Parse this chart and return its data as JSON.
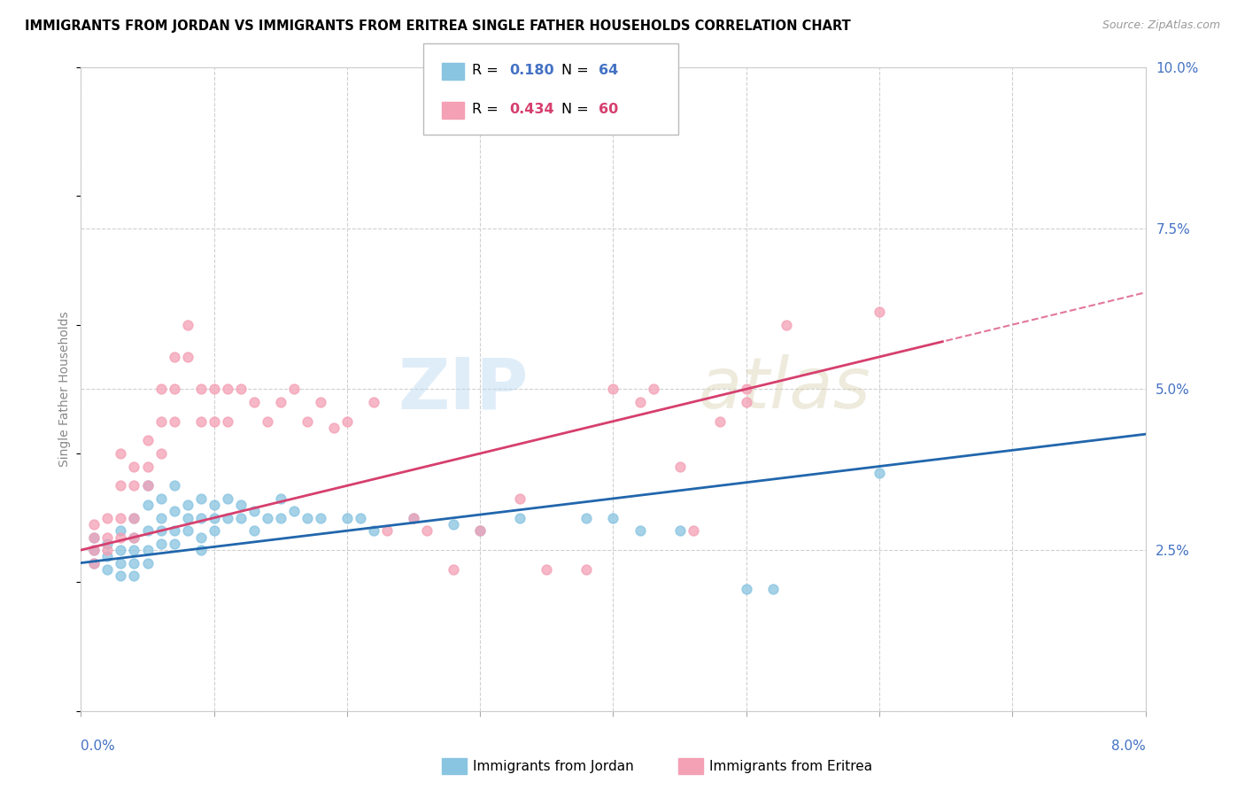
{
  "title": "IMMIGRANTS FROM JORDAN VS IMMIGRANTS FROM ERITREA SINGLE FATHER HOUSEHOLDS CORRELATION CHART",
  "source": "Source: ZipAtlas.com",
  "ylabel": "Single Father Households",
  "xlim": [
    0.0,
    0.08
  ],
  "ylim": [
    0.0,
    0.1
  ],
  "yticks": [
    0.0,
    0.025,
    0.05,
    0.075,
    0.1
  ],
  "ytick_labels": [
    "",
    "2.5%",
    "5.0%",
    "7.5%",
    "10.0%"
  ],
  "jordan_color": "#89c4e1",
  "eritrea_color": "#f4a0b5",
  "jordan_line_color": "#2166ac",
  "eritrea_line_color": "#d63f6e",
  "jordan_R": 0.18,
  "jordan_N": 64,
  "eritrea_R": 0.434,
  "eritrea_N": 60,
  "watermark_zip": "ZIP",
  "watermark_atlas": "atlas",
  "background_color": "#ffffff",
  "grid_color": "#d0d0d0",
  "axis_label_color": "#4472c4",
  "jordan_scatter": [
    [
      0.001,
      0.027
    ],
    [
      0.001,
      0.025
    ],
    [
      0.001,
      0.023
    ],
    [
      0.002,
      0.026
    ],
    [
      0.002,
      0.024
    ],
    [
      0.002,
      0.022
    ],
    [
      0.003,
      0.028
    ],
    [
      0.003,
      0.025
    ],
    [
      0.003,
      0.023
    ],
    [
      0.003,
      0.021
    ],
    [
      0.004,
      0.03
    ],
    [
      0.004,
      0.027
    ],
    [
      0.004,
      0.025
    ],
    [
      0.004,
      0.023
    ],
    [
      0.004,
      0.021
    ],
    [
      0.005,
      0.035
    ],
    [
      0.005,
      0.032
    ],
    [
      0.005,
      0.028
    ],
    [
      0.005,
      0.025
    ],
    [
      0.005,
      0.023
    ],
    [
      0.006,
      0.033
    ],
    [
      0.006,
      0.03
    ],
    [
      0.006,
      0.028
    ],
    [
      0.006,
      0.026
    ],
    [
      0.007,
      0.035
    ],
    [
      0.007,
      0.031
    ],
    [
      0.007,
      0.028
    ],
    [
      0.007,
      0.026
    ],
    [
      0.008,
      0.032
    ],
    [
      0.008,
      0.03
    ],
    [
      0.008,
      0.028
    ],
    [
      0.009,
      0.033
    ],
    [
      0.009,
      0.03
    ],
    [
      0.009,
      0.027
    ],
    [
      0.009,
      0.025
    ],
    [
      0.01,
      0.032
    ],
    [
      0.01,
      0.03
    ],
    [
      0.01,
      0.028
    ],
    [
      0.011,
      0.033
    ],
    [
      0.011,
      0.03
    ],
    [
      0.012,
      0.032
    ],
    [
      0.012,
      0.03
    ],
    [
      0.013,
      0.031
    ],
    [
      0.013,
      0.028
    ],
    [
      0.014,
      0.03
    ],
    [
      0.015,
      0.033
    ],
    [
      0.015,
      0.03
    ],
    [
      0.016,
      0.031
    ],
    [
      0.017,
      0.03
    ],
    [
      0.018,
      0.03
    ],
    [
      0.02,
      0.03
    ],
    [
      0.021,
      0.03
    ],
    [
      0.022,
      0.028
    ],
    [
      0.025,
      0.03
    ],
    [
      0.028,
      0.029
    ],
    [
      0.03,
      0.028
    ],
    [
      0.033,
      0.03
    ],
    [
      0.038,
      0.03
    ],
    [
      0.04,
      0.03
    ],
    [
      0.042,
      0.028
    ],
    [
      0.045,
      0.028
    ],
    [
      0.05,
      0.019
    ],
    [
      0.052,
      0.019
    ],
    [
      0.06,
      0.037
    ]
  ],
  "eritrea_scatter": [
    [
      0.001,
      0.029
    ],
    [
      0.001,
      0.027
    ],
    [
      0.001,
      0.025
    ],
    [
      0.001,
      0.023
    ],
    [
      0.002,
      0.03
    ],
    [
      0.002,
      0.027
    ],
    [
      0.002,
      0.025
    ],
    [
      0.003,
      0.04
    ],
    [
      0.003,
      0.035
    ],
    [
      0.003,
      0.03
    ],
    [
      0.003,
      0.027
    ],
    [
      0.004,
      0.038
    ],
    [
      0.004,
      0.035
    ],
    [
      0.004,
      0.03
    ],
    [
      0.004,
      0.027
    ],
    [
      0.005,
      0.042
    ],
    [
      0.005,
      0.038
    ],
    [
      0.005,
      0.035
    ],
    [
      0.006,
      0.05
    ],
    [
      0.006,
      0.045
    ],
    [
      0.006,
      0.04
    ],
    [
      0.007,
      0.055
    ],
    [
      0.007,
      0.05
    ],
    [
      0.007,
      0.045
    ],
    [
      0.008,
      0.06
    ],
    [
      0.008,
      0.055
    ],
    [
      0.009,
      0.05
    ],
    [
      0.009,
      0.045
    ],
    [
      0.01,
      0.05
    ],
    [
      0.01,
      0.045
    ],
    [
      0.011,
      0.05
    ],
    [
      0.011,
      0.045
    ],
    [
      0.012,
      0.05
    ],
    [
      0.013,
      0.048
    ],
    [
      0.014,
      0.045
    ],
    [
      0.015,
      0.048
    ],
    [
      0.016,
      0.05
    ],
    [
      0.017,
      0.045
    ],
    [
      0.018,
      0.048
    ],
    [
      0.019,
      0.044
    ],
    [
      0.02,
      0.045
    ],
    [
      0.022,
      0.048
    ],
    [
      0.023,
      0.028
    ],
    [
      0.025,
      0.03
    ],
    [
      0.026,
      0.028
    ],
    [
      0.028,
      0.022
    ],
    [
      0.03,
      0.028
    ],
    [
      0.033,
      0.033
    ],
    [
      0.035,
      0.022
    ],
    [
      0.038,
      0.022
    ],
    [
      0.04,
      0.05
    ],
    [
      0.042,
      0.048
    ],
    [
      0.043,
      0.05
    ],
    [
      0.045,
      0.038
    ],
    [
      0.046,
      0.028
    ],
    [
      0.048,
      0.045
    ],
    [
      0.05,
      0.05
    ],
    [
      0.053,
      0.06
    ],
    [
      0.06,
      0.062
    ],
    [
      0.05,
      0.048
    ]
  ]
}
